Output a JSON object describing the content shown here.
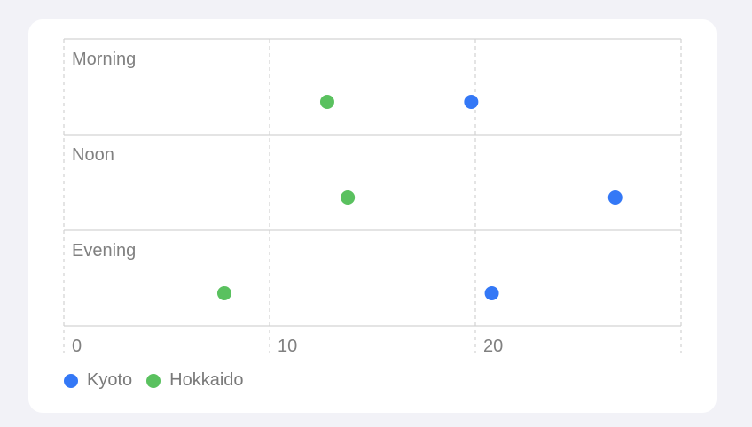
{
  "chart_data": {
    "type": "scatter",
    "categories": [
      "Morning",
      "Noon",
      "Evening"
    ],
    "x_ticks": [
      0,
      10,
      20
    ],
    "xlim": [
      0,
      30
    ],
    "grid": true,
    "legend_position": "bottom-left",
    "series": [
      {
        "name": "Kyoto",
        "color": "#3478f6",
        "values": [
          19.8,
          26.8,
          20.8
        ]
      },
      {
        "name": "Hokkaido",
        "color": "#5ac15f",
        "values": [
          12.8,
          13.8,
          7.8
        ]
      }
    ]
  }
}
